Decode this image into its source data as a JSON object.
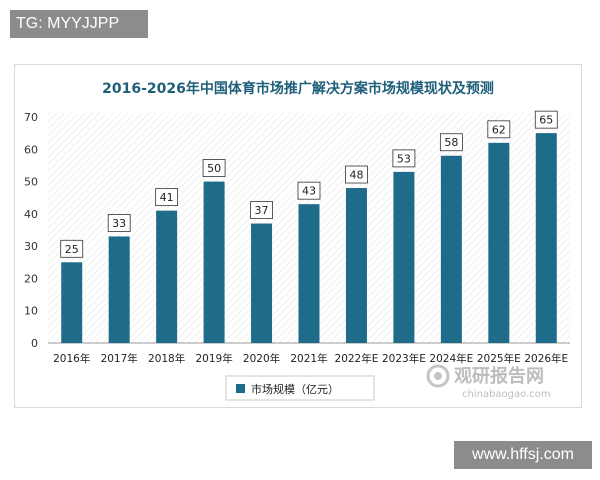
{
  "tags": {
    "top_left": "TG: MYYJJPP",
    "bottom_right": "www.hffsj.com"
  },
  "watermark": {
    "cn": "观研报告网",
    "en": "chinabaogao.com"
  },
  "chart_data": {
    "type": "bar",
    "title": "2016-2026年中国体育市场推广解决方案市场规模现状及预测",
    "categories": [
      "2016年",
      "2017年",
      "2018年",
      "2019年",
      "2020年",
      "2021年",
      "2022年E",
      "2023年E",
      "2024年E",
      "2025年E",
      "2026年E"
    ],
    "series": [
      {
        "name": "市场规模（亿元）",
        "values": [
          25,
          33,
          41,
          50,
          37,
          43,
          48,
          53,
          58,
          62,
          65
        ]
      }
    ],
    "ylim": [
      0,
      70
    ],
    "yticks": [
      0,
      10,
      20,
      30,
      40,
      50,
      60,
      70
    ],
    "legend": "bottom-left",
    "grid": false,
    "colors": {
      "bar": "#1f6b8a",
      "title": "#1f5f7a"
    }
  }
}
